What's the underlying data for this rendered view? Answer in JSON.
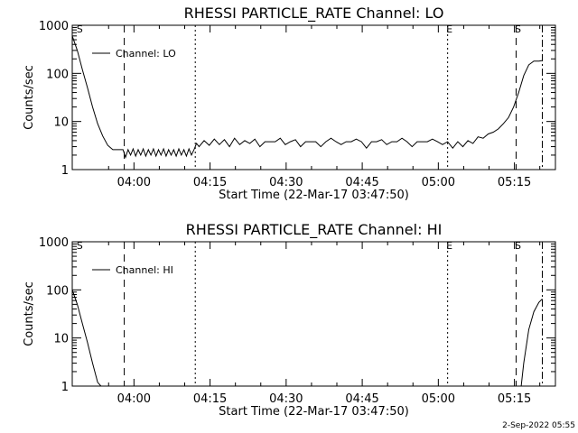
{
  "chart_data": [
    {
      "type": "line",
      "title": "RHESSI PARTICLE_RATE Channel: LO",
      "xlabel": "Start Time (22-Mar-17 03:47:50)",
      "ylabel": "Counts/sec",
      "yscale": "log",
      "xlim": [
        0,
        5715
      ],
      "ylim": [
        1,
        1000
      ],
      "x_units": "seconds after 22-Mar-17 03:47:50",
      "x_ticks": [
        {
          "x": 730,
          "label": "04:00"
        },
        {
          "x": 1630,
          "label": "04:15"
        },
        {
          "x": 2530,
          "label": "04:30"
        },
        {
          "x": 3430,
          "label": "04:45"
        },
        {
          "x": 4330,
          "label": "05:00"
        },
        {
          "x": 5230,
          "label": "05:15"
        }
      ],
      "y_ticks": [
        {
          "y": 1,
          "label": "1"
        },
        {
          "y": 10,
          "label": "10"
        },
        {
          "y": 100,
          "label": "100"
        },
        {
          "y": 1000,
          "label": "1000"
        }
      ],
      "legend": {
        "label": "Channel: LO",
        "position": "top-left"
      },
      "markers": [
        {
          "x": 30,
          "label": "S",
          "style": "none"
        },
        {
          "x": 615,
          "label": "",
          "style": "dashed"
        },
        {
          "x": 1455,
          "label": "",
          "style": "dotted"
        },
        {
          "x": 4440,
          "label": "E",
          "style": "dotted"
        },
        {
          "x": 5250,
          "label": "S",
          "style": "dashed"
        },
        {
          "x": 5560,
          "label": "",
          "style": "dashdot"
        }
      ],
      "series": [
        {
          "name": "Channel: LO",
          "x": [
            0,
            60,
            120,
            180,
            240,
            300,
            360,
            420,
            480,
            540,
            560,
            600,
            630,
            660,
            690,
            720,
            750,
            780,
            810,
            840,
            870,
            900,
            930,
            960,
            990,
            1020,
            1050,
            1080,
            1110,
            1140,
            1170,
            1200,
            1230,
            1260,
            1290,
            1320,
            1350,
            1380,
            1410,
            1440,
            1470,
            1500,
            1560,
            1620,
            1680,
            1740,
            1800,
            1860,
            1920,
            1980,
            2040,
            2100,
            2160,
            2220,
            2280,
            2340,
            2400,
            2460,
            2520,
            2580,
            2640,
            2700,
            2760,
            2820,
            2880,
            2940,
            3000,
            3060,
            3120,
            3180,
            3240,
            3300,
            3360,
            3420,
            3480,
            3540,
            3600,
            3660,
            3720,
            3780,
            3840,
            3900,
            3960,
            4020,
            4080,
            4140,
            4200,
            4260,
            4320,
            4380,
            4440,
            4500,
            4560,
            4620,
            4680,
            4740,
            4800,
            4860,
            4920,
            4980,
            5040,
            5100,
            5160,
            5220,
            5280,
            5340,
            5400,
            5460,
            5520,
            5560
          ],
          "values": [
            600,
            300,
            120,
            50,
            20,
            9,
            5,
            3.2,
            2.6,
            2.6,
            2.6,
            2.6,
            1.8,
            2.6,
            2.0,
            2.7,
            1.9,
            2.6,
            2.0,
            2.7,
            1.9,
            2.6,
            2.0,
            2.7,
            1.9,
            2.6,
            2.0,
            2.7,
            1.9,
            2.6,
            2.0,
            2.6,
            1.9,
            2.7,
            2.0,
            2.6,
            1.9,
            2.7,
            2.0,
            2.6,
            3.5,
            3.0,
            4.0,
            3.2,
            4.3,
            3.3,
            4.2,
            3.0,
            4.5,
            3.3,
            4.0,
            3.5,
            4.3,
            3.0,
            3.8,
            3.8,
            3.8,
            4.5,
            3.3,
            3.8,
            4.2,
            3.0,
            3.8,
            3.8,
            3.8,
            3.0,
            3.8,
            4.5,
            3.8,
            3.3,
            3.8,
            3.8,
            4.3,
            3.8,
            2.8,
            3.8,
            3.8,
            4.2,
            3.3,
            3.8,
            3.8,
            4.5,
            3.8,
            3.0,
            3.8,
            3.8,
            3.8,
            4.3,
            3.8,
            3.3,
            3.8,
            2.8,
            3.8,
            3.0,
            4.0,
            3.5,
            4.8,
            4.5,
            5.5,
            6.0,
            7.0,
            9.0,
            12.0,
            20,
            40,
            90,
            150,
            180,
            180,
            185
          ]
        }
      ]
    },
    {
      "type": "line",
      "title": "RHESSI PARTICLE_RATE Channel: HI",
      "xlabel": "Start Time (22-Mar-17 03:47:50)",
      "ylabel": "Counts/sec",
      "yscale": "log",
      "xlim": [
        0,
        5715
      ],
      "ylim": [
        1,
        1000
      ],
      "x_units": "seconds after 22-Mar-17 03:47:50",
      "x_ticks": [
        {
          "x": 730,
          "label": "04:00"
        },
        {
          "x": 1630,
          "label": "04:15"
        },
        {
          "x": 2530,
          "label": "04:30"
        },
        {
          "x": 3430,
          "label": "04:45"
        },
        {
          "x": 4330,
          "label": "05:00"
        },
        {
          "x": 5230,
          "label": "05:15"
        }
      ],
      "y_ticks": [
        {
          "y": 1,
          "label": "1"
        },
        {
          "y": 10,
          "label": "10"
        },
        {
          "y": 100,
          "label": "100"
        },
        {
          "y": 1000,
          "label": "1000"
        }
      ],
      "legend": {
        "label": "Channel: HI",
        "position": "top-left"
      },
      "markers": [
        {
          "x": 30,
          "label": "S",
          "style": "none"
        },
        {
          "x": 615,
          "label": "",
          "style": "dashed"
        },
        {
          "x": 1455,
          "label": "",
          "style": "dotted"
        },
        {
          "x": 4440,
          "label": "E",
          "style": "dotted"
        },
        {
          "x": 5250,
          "label": "S",
          "style": "dashed"
        },
        {
          "x": 5560,
          "label": "",
          "style": "dashdot"
        }
      ],
      "series": [
        {
          "name": "Channel: HI",
          "x": [
            0,
            60,
            120,
            180,
            240,
            300,
            340,
            5310,
            5340,
            5400,
            5460,
            5520,
            5560
          ],
          "values": [
            100,
            50,
            20,
            8,
            3,
            1.2,
            1,
            1,
            3,
            15,
            35,
            55,
            65
          ]
        }
      ]
    }
  ],
  "timestamp": "2-Sep-2022 05:55"
}
